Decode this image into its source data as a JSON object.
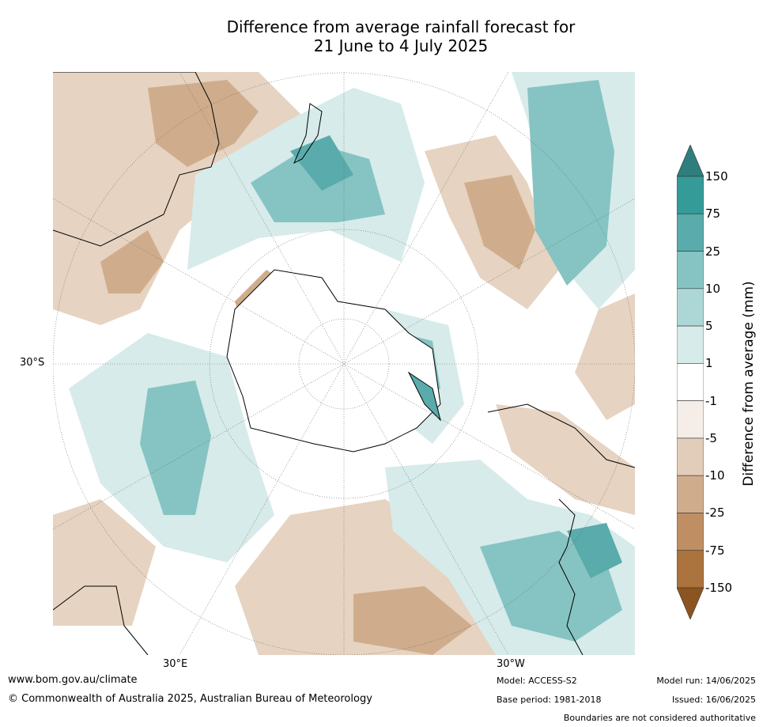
{
  "title_line1": "Difference from average rainfall forecast for",
  "title_line2": "21 June to 4 July 2025",
  "lat_label": "30°S",
  "lon_label_left": "30°E",
  "lon_label_right": "30°W",
  "colorbar": {
    "title": "Difference from average (mm)",
    "levels": [
      "150",
      "75",
      "25",
      "10",
      "5",
      "1",
      "-1",
      "-5",
      "-10",
      "-25",
      "-75",
      "-150"
    ],
    "colors": [
      "#2e7e7d",
      "#349b99",
      "#5aabab",
      "#85c4c2",
      "#add7d6",
      "#d6ebea",
      "#ffffff",
      "#f5ede8",
      "#e1cdb9",
      "#cfad8c",
      "#bf8f63",
      "#ab733e",
      "#8c5420"
    ]
  },
  "footer": {
    "website": "www.bom.gov.au/climate",
    "copyright": "© Commonwealth of Australia 2025, Australian Bureau of Meteorology",
    "model": "Model: ACCESS-S2",
    "base_period": "Base period: 1981-2018",
    "model_run": "Model run: 14/06/2025",
    "issued": "Issued: 16/06/2025",
    "disclaimer": "Boundaries are not considered authoritative"
  }
}
